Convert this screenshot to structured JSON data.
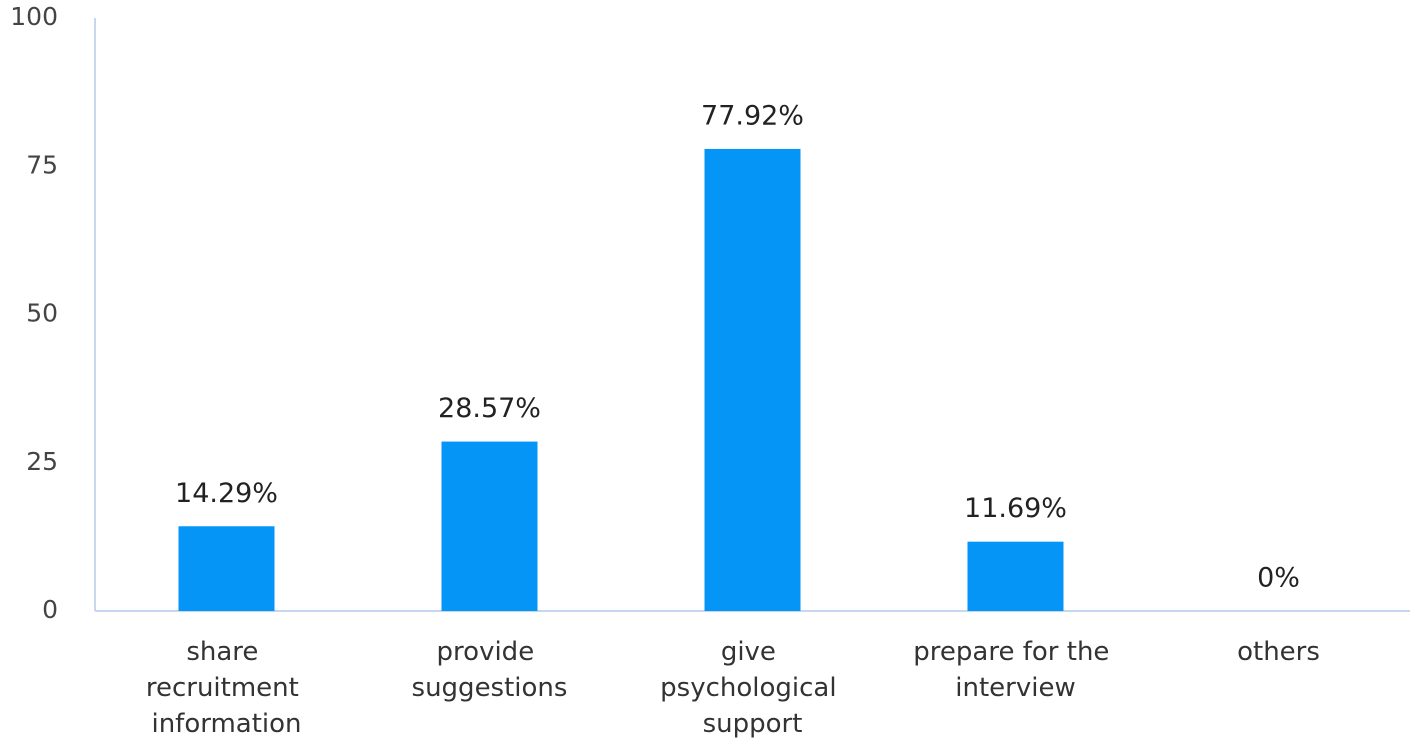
{
  "chart_data": {
    "type": "bar",
    "categories": [
      "share recruitment information",
      "provide suggestions",
      "give psychological support",
      "prepare for the interview",
      "others"
    ],
    "values": [
      14.29,
      28.57,
      77.92,
      11.69,
      0
    ],
    "value_labels": [
      "14.29%",
      "28.57%",
      "77.92%",
      "11.69%",
      "0%"
    ],
    "color": "#0595f7",
    "ylim": [
      0,
      100
    ],
    "yticks": [
      0,
      25,
      50,
      75,
      100
    ],
    "grid": false
  }
}
